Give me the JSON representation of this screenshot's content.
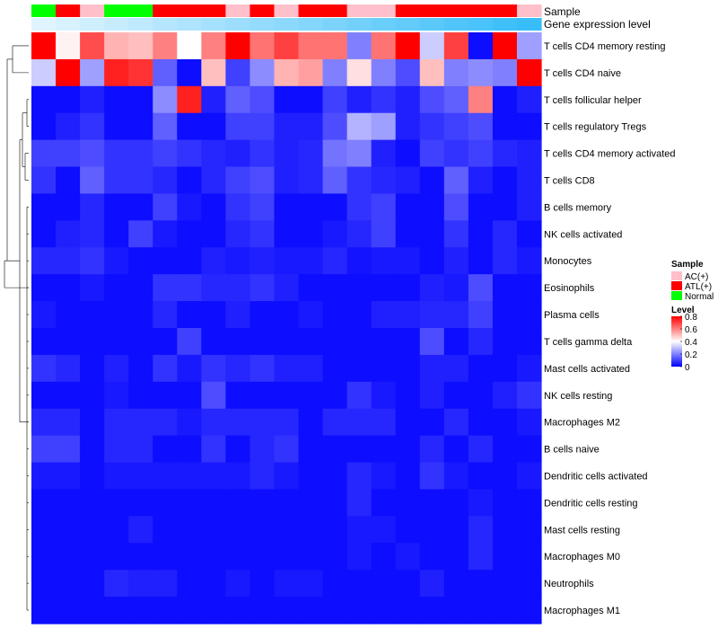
{
  "chart_data": {
    "type": "heatmap",
    "title": "",
    "annotation_titles": {
      "sample": "Sample",
      "level": "Gene expression level"
    },
    "rows": [
      "T cells CD4 memory resting",
      "T cells CD4 naive",
      "T cells follicular helper",
      "T cells regulatory  Tregs",
      "T cells CD4 memory activated",
      "T cells CD8",
      "B cells memory",
      "NK cells activated",
      "Monocytes",
      "Eosinophils",
      "Plasma cells",
      "T cells gamma delta",
      "Mast cells activated",
      "NK cells resting",
      "Macrophages M2",
      "B cells naive",
      "Dendritic cells activated",
      "Dendritic cells resting",
      "Mast cells resting",
      "Macrophages M0",
      "Neutrophils",
      "Macrophages M1"
    ],
    "sample_groups": [
      "Normal",
      "ATL(+)",
      "AC(+)",
      "Normal",
      "Normal",
      "ATL(+)",
      "ATL(+)",
      "ATL(+)",
      "AC(+)",
      "ATL(+)",
      "AC(+)",
      "ATL(+)",
      "ATL(+)",
      "AC(+)",
      "AC(+)",
      "ATL(+)",
      "ATL(+)",
      "ATL(+)",
      "ATL(+)",
      "ATL(+)",
      "AC(+)"
    ],
    "values": [
      [
        0.8,
        0.42,
        0.68,
        0.52,
        0.5,
        0.6,
        0.4,
        0.6,
        0.8,
        0.62,
        0.7,
        0.62,
        0.62,
        0.2,
        0.62,
        0.8,
        0.32,
        0.7,
        0.02,
        0.8,
        0.25
      ],
      [
        0.32,
        0.8,
        0.25,
        0.75,
        0.72,
        0.15,
        0.02,
        0.5,
        0.1,
        0.22,
        0.52,
        0.55,
        0.2,
        0.45,
        0.2,
        0.12,
        0.5,
        0.2,
        0.22,
        0.2,
        0.8
      ],
      [
        0.02,
        0.02,
        0.05,
        0.02,
        0.02,
        0.22,
        0.75,
        0.05,
        0.15,
        0.12,
        0.02,
        0.02,
        0.1,
        0.05,
        0.08,
        0.05,
        0.12,
        0.15,
        0.6,
        0.02,
        0.05
      ],
      [
        0.02,
        0.05,
        0.08,
        0.02,
        0.02,
        0.15,
        0.02,
        0.02,
        0.1,
        0.1,
        0.05,
        0.05,
        0.12,
        0.28,
        0.25,
        0.05,
        0.08,
        0.1,
        0.12,
        0.02,
        0.02
      ],
      [
        0.1,
        0.1,
        0.12,
        0.08,
        0.08,
        0.1,
        0.08,
        0.06,
        0.05,
        0.08,
        0.05,
        0.06,
        0.18,
        0.2,
        0.05,
        0.02,
        0.1,
        0.08,
        0.1,
        0.06,
        0.05
      ],
      [
        0.08,
        0.02,
        0.15,
        0.08,
        0.08,
        0.06,
        0.02,
        0.06,
        0.1,
        0.12,
        0.05,
        0.06,
        0.15,
        0.08,
        0.06,
        0.05,
        0.02,
        0.15,
        0.05,
        0.02,
        0.05
      ],
      [
        0.02,
        0.02,
        0.06,
        0.02,
        0.02,
        0.1,
        0.04,
        0.02,
        0.08,
        0.1,
        0.02,
        0.02,
        0.02,
        0.08,
        0.1,
        0.02,
        0.02,
        0.12,
        0.02,
        0.02,
        0.05
      ],
      [
        0.02,
        0.05,
        0.06,
        0.02,
        0.1,
        0.04,
        0.02,
        0.02,
        0.06,
        0.08,
        0.02,
        0.02,
        0.04,
        0.06,
        0.1,
        0.02,
        0.02,
        0.08,
        0.02,
        0.06,
        0.02
      ],
      [
        0.06,
        0.06,
        0.08,
        0.04,
        0.02,
        0.02,
        0.02,
        0.05,
        0.04,
        0.05,
        0.04,
        0.04,
        0.06,
        0.03,
        0.04,
        0.04,
        0.02,
        0.05,
        0.02,
        0.06,
        0.04
      ],
      [
        0.02,
        0.02,
        0.04,
        0.02,
        0.02,
        0.08,
        0.08,
        0.06,
        0.06,
        0.08,
        0.05,
        0.02,
        0.02,
        0.02,
        0.02,
        0.02,
        0.05,
        0.04,
        0.12,
        0.02,
        0.02
      ],
      [
        0.04,
        0.02,
        0.02,
        0.02,
        0.02,
        0.06,
        0.02,
        0.02,
        0.05,
        0.02,
        0.02,
        0.04,
        0.02,
        0.02,
        0.05,
        0.05,
        0.06,
        0.06,
        0.1,
        0.02,
        0.02
      ],
      [
        0.02,
        0.02,
        0.02,
        0.02,
        0.02,
        0.02,
        0.1,
        0.02,
        0.02,
        0.02,
        0.02,
        0.02,
        0.02,
        0.02,
        0.02,
        0.02,
        0.12,
        0.02,
        0.06,
        0.02,
        0.02
      ],
      [
        0.08,
        0.06,
        0.02,
        0.05,
        0.02,
        0.08,
        0.04,
        0.08,
        0.06,
        0.08,
        0.05,
        0.05,
        0.02,
        0.02,
        0.02,
        0.02,
        0.05,
        0.05,
        0.02,
        0.02,
        0.04
      ],
      [
        0.02,
        0.02,
        0.02,
        0.04,
        0.02,
        0.02,
        0.02,
        0.12,
        0.02,
        0.02,
        0.02,
        0.02,
        0.02,
        0.08,
        0.04,
        0.02,
        0.05,
        0.02,
        0.02,
        0.05,
        0.08
      ],
      [
        0.06,
        0.06,
        0.02,
        0.06,
        0.06,
        0.06,
        0.04,
        0.06,
        0.06,
        0.06,
        0.06,
        0.02,
        0.06,
        0.06,
        0.06,
        0.02,
        0.02,
        0.06,
        0.02,
        0.02,
        0.04
      ],
      [
        0.1,
        0.1,
        0.02,
        0.06,
        0.06,
        0.02,
        0.02,
        0.08,
        0.02,
        0.06,
        0.08,
        0.02,
        0.02,
        0.02,
        0.02,
        0.02,
        0.06,
        0.02,
        0.06,
        0.02,
        0.02
      ],
      [
        0.04,
        0.04,
        0.02,
        0.04,
        0.04,
        0.04,
        0.04,
        0.04,
        0.04,
        0.06,
        0.04,
        0.02,
        0.02,
        0.06,
        0.04,
        0.02,
        0.08,
        0.04,
        0.02,
        0.02,
        0.04
      ],
      [
        0.02,
        0.02,
        0.02,
        0.02,
        0.02,
        0.02,
        0.02,
        0.02,
        0.02,
        0.02,
        0.02,
        0.02,
        0.02,
        0.06,
        0.02,
        0.02,
        0.02,
        0.02,
        0.04,
        0.02,
        0.02
      ],
      [
        0.02,
        0.02,
        0.02,
        0.02,
        0.05,
        0.02,
        0.02,
        0.02,
        0.02,
        0.02,
        0.02,
        0.02,
        0.02,
        0.04,
        0.04,
        0.02,
        0.02,
        0.02,
        0.06,
        0.02,
        0.02
      ],
      [
        0.02,
        0.02,
        0.02,
        0.02,
        0.02,
        0.02,
        0.02,
        0.02,
        0.02,
        0.02,
        0.02,
        0.02,
        0.02,
        0.04,
        0.02,
        0.04,
        0.02,
        0.02,
        0.06,
        0.02,
        0.02
      ],
      [
        0.02,
        0.02,
        0.02,
        0.06,
        0.05,
        0.05,
        0.02,
        0.02,
        0.04,
        0.02,
        0.04,
        0.04,
        0.02,
        0.02,
        0.02,
        0.02,
        0.05,
        0.02,
        0.02,
        0.02,
        0.02
      ],
      [
        0.02,
        0.02,
        0.02,
        0.02,
        0.02,
        0.02,
        0.02,
        0.02,
        0.02,
        0.02,
        0.02,
        0.02,
        0.02,
        0.02,
        0.02,
        0.02,
        0.02,
        0.02,
        0.02,
        0.02,
        0.02
      ]
    ],
    "level_annotation": [
      0.08,
      0.1,
      0.12,
      0.14,
      0.16,
      0.18,
      0.2,
      0.22,
      0.24,
      0.26,
      0.28,
      0.3,
      0.32,
      0.34,
      0.36,
      0.38,
      0.4,
      0.42,
      0.44,
      0.46,
      0.48
    ],
    "legend": {
      "sample_title": "Sample",
      "sample_entries": [
        {
          "label": "AC(+)",
          "color": "#ffc0cb"
        },
        {
          "label": "ATL(+)",
          "color": "#ff0000"
        },
        {
          "label": "Normal",
          "color": "#00ff00"
        }
      ],
      "level_title": "Level",
      "level_ticks": [
        "0.8",
        "0.6",
        "0.4",
        "0.2",
        "0"
      ],
      "level_range": [
        0,
        0.8
      ]
    },
    "colors": {
      "low": "#0000ff",
      "mid": "#ffffff",
      "high": "#ff0000",
      "level_low": "#e0f4ff",
      "level_high": "#38bdf8"
    }
  }
}
